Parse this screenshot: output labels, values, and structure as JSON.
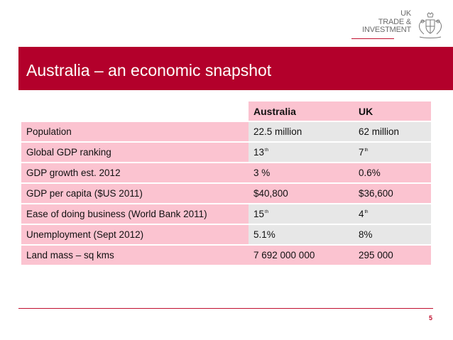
{
  "logo": {
    "line1": "UK",
    "line2": "TRADE &",
    "line3": "INVESTMENT",
    "crest": "royal-coat-of-arms"
  },
  "title": "Australia – an economic snapshot",
  "table": {
    "headers": [
      "",
      "Australia",
      "UK"
    ],
    "rows": [
      {
        "label": "Population",
        "australia": "22.5 million",
        "uk": "62 million"
      },
      {
        "label": "Global GDP ranking",
        "australia": "13",
        "australia_sup": "th",
        "uk": "7",
        "uk_sup": "th"
      },
      {
        "label": "GDP growth est. 2012",
        "australia": "3 %",
        "uk": "0.6%"
      },
      {
        "label": "GDP per capita ($US 2011)",
        "australia": "$40,800",
        "uk": "$36,600"
      },
      {
        "label": "Ease of doing business (World Bank 2011)",
        "australia": "15",
        "australia_sup": "th",
        "uk": "4",
        "uk_sup": "th"
      },
      {
        "label": "Unemployment (Sept 2012)",
        "australia": "5.1%",
        "uk": "8%"
      },
      {
        "label": "Land mass – sq kms",
        "australia": "7 692 000 000",
        "uk": "295 000"
      }
    ]
  },
  "page_number": "5",
  "colors": {
    "brand_red": "#b3002b",
    "row_pink": "#fbc3d0",
    "row_grey": "#e7e7e7"
  }
}
